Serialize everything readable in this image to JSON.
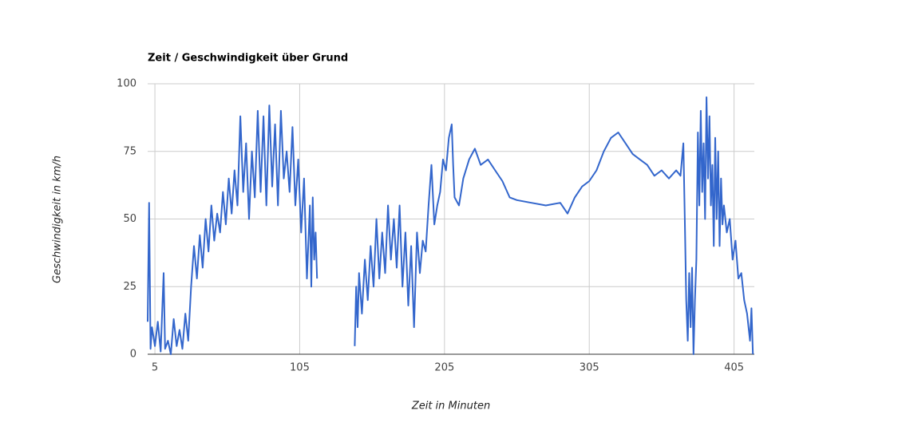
{
  "chart_data": {
    "type": "line",
    "title": "Zeit / Geschwindigkeit über Grund",
    "x_label": "Zeit in Minuten",
    "y_label": "Geschwindigkeit in km/h",
    "x": [
      0,
      1,
      2,
      3,
      5,
      7,
      9,
      11,
      12,
      14,
      16,
      18,
      20,
      22,
      24,
      26,
      28,
      30,
      32,
      34,
      36,
      38,
      40,
      42,
      44,
      46,
      48,
      50,
      52,
      54,
      56,
      58,
      60,
      62,
      64,
      66,
      68,
      70,
      72,
      74,
      76,
      78,
      80,
      82,
      84,
      86,
      88,
      90,
      92,
      94,
      96,
      98,
      100,
      102,
      104,
      106,
      108,
      110,
      112,
      113,
      114,
      115,
      116,
      117,
      130,
      143,
      144,
      145,
      146,
      148,
      150,
      152,
      154,
      156,
      158,
      160,
      162,
      164,
      166,
      168,
      170,
      172,
      174,
      176,
      178,
      180,
      182,
      184,
      186,
      188,
      190,
      192,
      194,
      196,
      198,
      200,
      202,
      204,
      206,
      208,
      210,
      211,
      212,
      215,
      218,
      222,
      226,
      230,
      235,
      240,
      245,
      250,
      255,
      265,
      275,
      285,
      290,
      295,
      300,
      305,
      310,
      315,
      320,
      325,
      330,
      335,
      340,
      345,
      350,
      355,
      360,
      365,
      368,
      370,
      371,
      372,
      373,
      374,
      375,
      376,
      377,
      378,
      379,
      380,
      381,
      382,
      383,
      384,
      385,
      386,
      387,
      388,
      389,
      390,
      391,
      392,
      393,
      394,
      395,
      396,
      397,
      398,
      400,
      402,
      404,
      406,
      408,
      410,
      412,
      414,
      416,
      417,
      418
    ],
    "series": [
      {
        "color": "#3366cc",
        "values": [
          12,
          56,
          2,
          10,
          3,
          12,
          1,
          30,
          2,
          5,
          0,
          13,
          3,
          9,
          2,
          15,
          5,
          25,
          40,
          28,
          44,
          32,
          50,
          38,
          55,
          42,
          52,
          45,
          60,
          48,
          65,
          52,
          68,
          55,
          88,
          60,
          78,
          50,
          75,
          58,
          90,
          60,
          88,
          55,
          92,
          62,
          85,
          55,
          90,
          65,
          75,
          60,
          84,
          55,
          72,
          45,
          65,
          28,
          55,
          25,
          58,
          35,
          45,
          28,
          null,
          3,
          25,
          10,
          30,
          15,
          35,
          20,
          40,
          25,
          50,
          28,
          45,
          30,
          55,
          35,
          50,
          32,
          55,
          25,
          45,
          18,
          40,
          10,
          45,
          30,
          42,
          38,
          55,
          70,
          48,
          55,
          60,
          72,
          68,
          80,
          85,
          70,
          58,
          55,
          65,
          72,
          76,
          70,
          72,
          68,
          64,
          58,
          57,
          56,
          55,
          56,
          52,
          58,
          62,
          64,
          68,
          75,
          80,
          82,
          78,
          74,
          72,
          70,
          66,
          68,
          65,
          68,
          66,
          78,
          50,
          20,
          5,
          30,
          10,
          32,
          0,
          20,
          35,
          82,
          55,
          90,
          60,
          78,
          50,
          95,
          65,
          88,
          55,
          70,
          40,
          80,
          50,
          75,
          40,
          65,
          48,
          55,
          45,
          50,
          35,
          42,
          28,
          30,
          20,
          15,
          5,
          17,
          0
        ]
      }
    ],
    "xlim": [
      0,
      419
    ],
    "ylim": [
      0,
      100
    ],
    "xticks": [
      5,
      105,
      205,
      305,
      405
    ],
    "yticks": [
      0,
      25,
      50,
      75,
      100
    ],
    "grid": true
  }
}
